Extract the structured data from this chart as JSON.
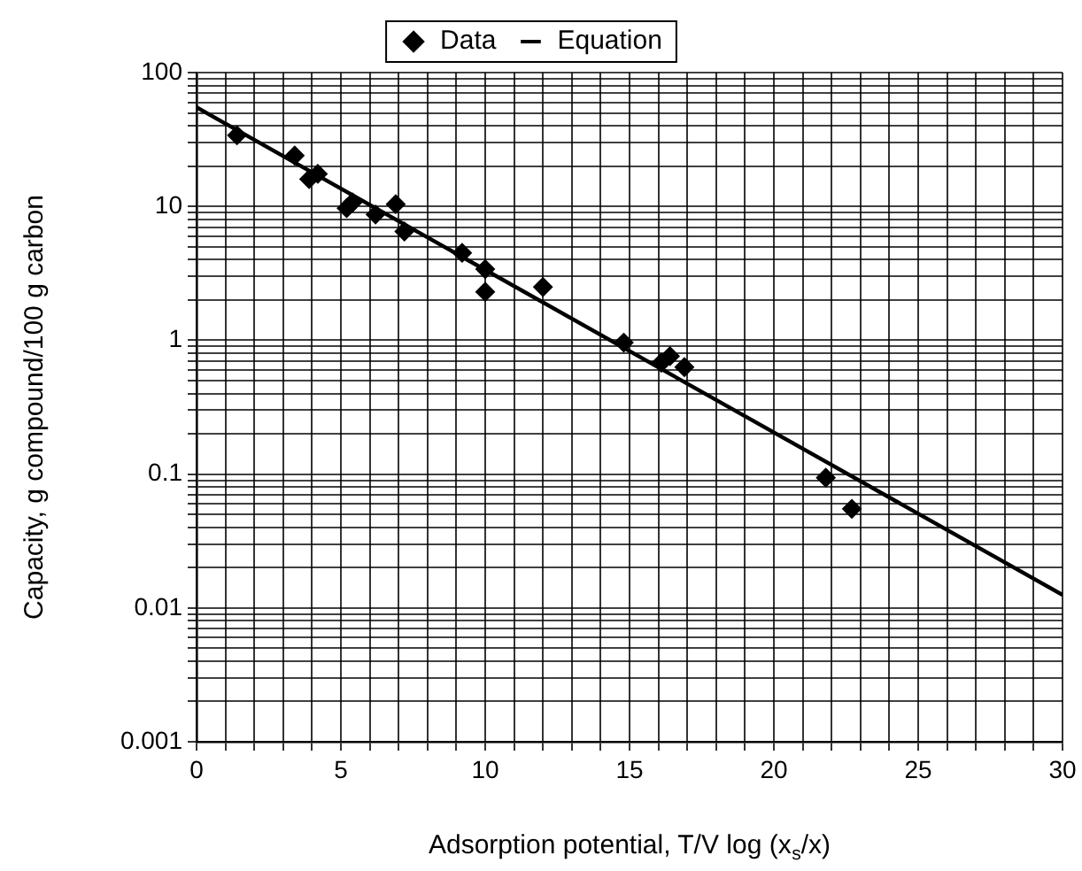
{
  "chart_data": {
    "type": "scatter",
    "xlabel": "Adsorption potential, T/V log (x$_{s}$/x)",
    "ylabel": "Capacity, g compound/100 g carbon",
    "log": "y",
    "grid": true,
    "legend": "top",
    "xlim": [
      0,
      30
    ],
    "ylim": [
      0.001,
      100
    ],
    "xticks": [
      0,
      {
        "value": 1,
        "label": null
      },
      {
        "value": 2,
        "label": null
      },
      {
        "value": 3,
        "label": null
      },
      {
        "value": 4,
        "label": null
      },
      5,
      {
        "value": 6,
        "label": null
      },
      {
        "value": 7,
        "label": null
      },
      {
        "value": 8,
        "label": null
      },
      {
        "value": 9,
        "label": null
      },
      10,
      {
        "value": 11,
        "label": null
      },
      {
        "value": 12,
        "label": null
      },
      {
        "value": 13,
        "label": null
      },
      {
        "value": 14,
        "label": null
      },
      15,
      {
        "value": 16,
        "label": null
      },
      {
        "value": 17,
        "label": null
      },
      {
        "value": 18,
        "label": null
      },
      {
        "value": 19,
        "label": null
      },
      20,
      {
        "value": 21,
        "label": null
      },
      {
        "value": 22,
        "label": null
      },
      {
        "value": 23,
        "label": null
      },
      {
        "value": 24,
        "label": null
      },
      25,
      {
        "value": 26,
        "label": null
      },
      {
        "value": 27,
        "label": null
      },
      {
        "value": 28,
        "label": null
      },
      {
        "value": 29,
        "label": null
      },
      30
    ],
    "yticks": [
      0.001,
      {
        "value": 0.002,
        "label": null
      },
      {
        "value": 0.003,
        "label": null
      },
      {
        "value": 0.004,
        "label": null
      },
      {
        "value": 0.005,
        "label": null
      },
      {
        "value": 0.006,
        "label": null
      },
      {
        "value": 0.007,
        "label": null
      },
      {
        "value": 0.008,
        "label": null
      },
      {
        "value": 0.009,
        "label": null
      },
      0.01,
      {
        "value": 0.02,
        "label": null
      },
      {
        "value": 0.03,
        "label": null
      },
      {
        "value": 0.04,
        "label": null
      },
      {
        "value": 0.05,
        "label": null
      },
      {
        "value": 0.06,
        "label": null
      },
      {
        "value": 0.07,
        "label": null
      },
      {
        "value": 0.08,
        "label": null
      },
      {
        "value": 0.09,
        "label": null
      },
      0.1,
      {
        "value": 0.2,
        "label": null
      },
      {
        "value": 0.3,
        "label": null
      },
      {
        "value": 0.4,
        "label": null
      },
      {
        "value": 0.5,
        "label": null
      },
      {
        "value": 0.6,
        "label": null
      },
      {
        "value": 0.7,
        "label": null
      },
      {
        "value": 0.8,
        "label": null
      },
      {
        "value": 0.9,
        "label": null
      },
      1,
      {
        "value": 2,
        "label": null
      },
      {
        "value": 3,
        "label": null
      },
      {
        "value": 4,
        "label": null
      },
      {
        "value": 5,
        "label": null
      },
      {
        "value": 6,
        "label": null
      },
      {
        "value": 7,
        "label": null
      },
      {
        "value": 8,
        "label": null
      },
      {
        "value": 9,
        "label": null
      },
      10,
      {
        "value": 20,
        "label": null
      },
      {
        "value": 30,
        "label": null
      },
      {
        "value": 40,
        "label": null
      },
      {
        "value": 50,
        "label": null
      },
      {
        "value": 60,
        "label": null
      },
      {
        "value": 70,
        "label": null
      },
      {
        "value": 80,
        "label": null
      },
      {
        "value": 90,
        "label": null
      },
      100
    ],
    "series": [
      {
        "name": "Data",
        "type": "scatter",
        "color": "#000000",
        "marker": "diamond",
        "x": [
          1.4,
          3.4,
          3.9,
          4.2,
          5.4,
          5.2,
          6.2,
          6.9,
          7.2,
          9.2,
          10,
          10,
          12,
          14.8,
          16.4,
          16.1,
          16.9,
          21.8,
          22.7
        ],
        "values": [
          34,
          24,
          16,
          17.5,
          10.7,
          9.7,
          8.7,
          10.4,
          6.5,
          4.5,
          3.4,
          2.3,
          2.5,
          0.96,
          0.76,
          0.68,
          0.63,
          0.094,
          0.055
        ]
      },
      {
        "name": "Equation",
        "type": "line",
        "color": "#000000",
        "marker": "none",
        "line_style": "solid",
        "x": [
          0,
          30
        ],
        "values": [
          55,
          0.0125
        ]
      }
    ]
  }
}
